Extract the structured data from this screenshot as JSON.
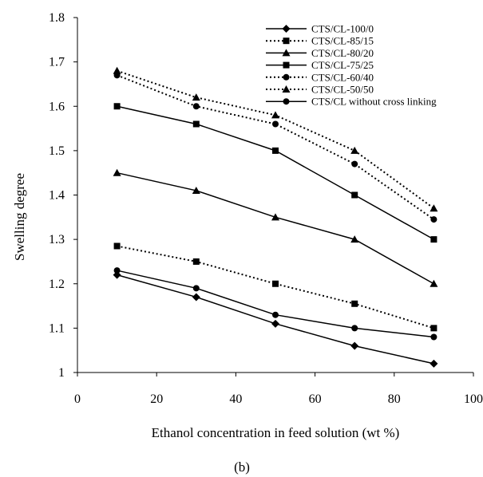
{
  "chart_data": {
    "type": "line",
    "xlabel": "Ethanol concentration in feed solution (wt %)",
    "ylabel": "Swelling degree",
    "xlim": [
      0,
      100
    ],
    "ylim": [
      1,
      1.8
    ],
    "x_ticks": [
      0,
      20,
      40,
      60,
      80,
      100
    ],
    "y_ticks": [
      1,
      1.1,
      1.2,
      1.3,
      1.4,
      1.5,
      1.6,
      1.7,
      1.8
    ],
    "x_tick_labels": [
      "0",
      "20",
      "40",
      "60",
      "80",
      "100"
    ],
    "y_tick_labels": [
      "1",
      "1.1",
      "1.2",
      "1.3",
      "1.4",
      "1.5",
      "1.6",
      "1.7",
      "1.8"
    ],
    "grid": false,
    "legend_position": "top-right",
    "panel_label": "(b)",
    "x": [
      10,
      30,
      50,
      70,
      90
    ],
    "series": [
      {
        "name": "CTS/CL-100/0",
        "values": [
          1.22,
          1.17,
          1.11,
          1.06,
          1.02
        ],
        "marker": "diamond",
        "line": "solid"
      },
      {
        "name": "CTS/CL-85/15",
        "values": [
          1.285,
          1.25,
          1.2,
          1.155,
          1.1
        ],
        "marker": "square",
        "line": "dotted"
      },
      {
        "name": "CTS/CL-80/20",
        "values": [
          1.45,
          1.41,
          1.35,
          1.3,
          1.2
        ],
        "marker": "triangle",
        "line": "solid"
      },
      {
        "name": "CTS/CL-75/25",
        "values": [
          1.6,
          1.56,
          1.5,
          1.4,
          1.3
        ],
        "marker": "square",
        "line": "solid"
      },
      {
        "name": "CTS/CL-60/40",
        "values": [
          1.67,
          1.6,
          1.56,
          1.47,
          1.345
        ],
        "marker": "circle",
        "line": "dotted"
      },
      {
        "name": "CTS/CL-50/50",
        "values": [
          1.68,
          1.62,
          1.58,
          1.5,
          1.37
        ],
        "marker": "triangle",
        "line": "dotted"
      },
      {
        "name": "CTS/CL without cross linking",
        "values": [
          1.23,
          1.19,
          1.13,
          1.1,
          1.08
        ],
        "marker": "circle",
        "line": "solid"
      }
    ]
  }
}
